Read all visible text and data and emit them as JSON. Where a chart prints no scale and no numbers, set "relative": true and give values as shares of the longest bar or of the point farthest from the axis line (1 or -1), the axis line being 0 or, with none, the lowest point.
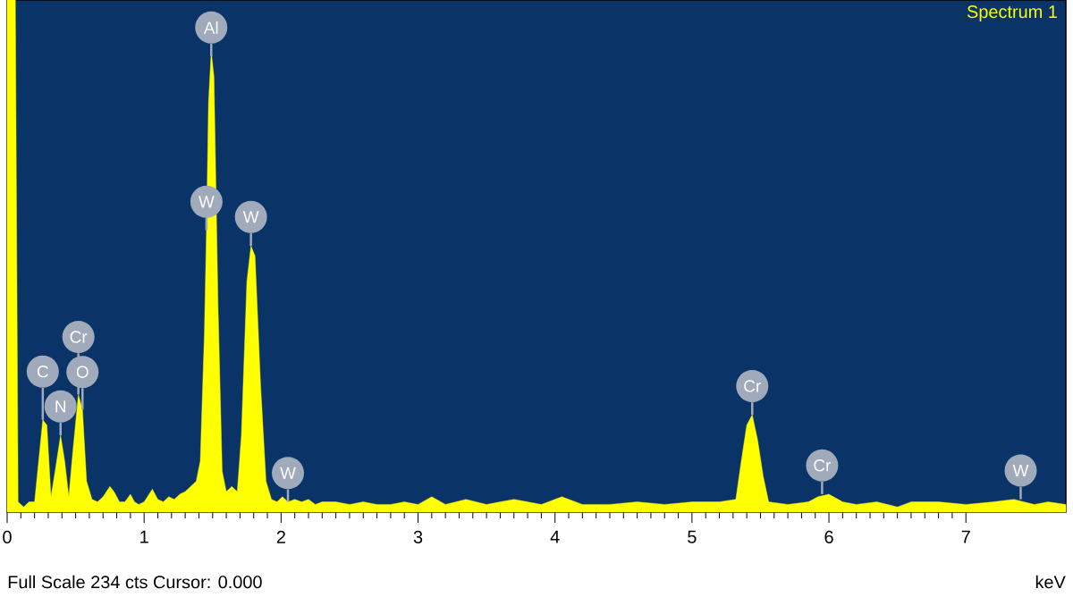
{
  "chart_data": {
    "type": "area",
    "relative": true,
    "xlabel": "keV",
    "xlim": [
      0,
      7.73
    ],
    "xticks": [
      0,
      1,
      2,
      3,
      4,
      5,
      6,
      7
    ],
    "legend": "top right",
    "annotations": [
      "Full Scale 234 cts Cursor: 0.000",
      {
        "text": "C",
        "x": 0.26,
        "y": 0.18
      },
      {
        "text": "O",
        "x": 0.55,
        "y": 0.2
      },
      {
        "text": "Cr",
        "x": 0.52,
        "y": 0.23
      },
      {
        "text": "N",
        "x": 0.39,
        "y": 0.15
      },
      {
        "text": "Al",
        "x": 1.49,
        "y": 0.89
      },
      {
        "text": "W",
        "x": 1.455,
        "y": 0.55
      },
      {
        "text": "W",
        "x": 1.78,
        "y": 0.52
      },
      {
        "text": "W",
        "x": 2.05,
        "y": 0.02
      },
      {
        "text": "Cr",
        "x": 5.44,
        "y": 0.19
      },
      {
        "text": "Cr",
        "x": 5.95,
        "y": 0.035
      },
      {
        "text": "W",
        "x": 7.4,
        "y": 0.025
      }
    ],
    "series": [
      {
        "name": "Spectrum 1",
        "color": "#ffff00",
        "x": [
          0.0,
          0.06,
          0.08,
          0.12,
          0.16,
          0.2,
          0.23,
          0.26,
          0.29,
          0.32,
          0.35,
          0.39,
          0.42,
          0.45,
          0.48,
          0.52,
          0.55,
          0.58,
          0.62,
          0.66,
          0.7,
          0.75,
          0.78,
          0.82,
          0.86,
          0.9,
          0.93,
          0.96,
          1.0,
          1.06,
          1.1,
          1.14,
          1.18,
          1.22,
          1.26,
          1.3,
          1.34,
          1.38,
          1.41,
          1.44,
          1.455,
          1.47,
          1.49,
          1.51,
          1.54,
          1.57,
          1.6,
          1.64,
          1.68,
          1.71,
          1.75,
          1.78,
          1.81,
          1.85,
          1.89,
          1.93,
          1.97,
          2.01,
          2.05,
          2.1,
          2.15,
          2.2,
          2.25,
          2.3,
          2.4,
          2.5,
          2.6,
          2.7,
          2.8,
          2.9,
          3.0,
          3.1,
          3.2,
          3.35,
          3.5,
          3.6,
          3.7,
          3.8,
          3.9,
          4.05,
          4.2,
          4.4,
          4.6,
          4.8,
          5.0,
          5.2,
          5.32,
          5.36,
          5.4,
          5.44,
          5.48,
          5.52,
          5.56,
          5.7,
          5.85,
          5.92,
          6.0,
          6.1,
          6.2,
          6.35,
          6.5,
          6.6,
          6.8,
          7.0,
          7.2,
          7.35,
          7.5,
          7.6,
          7.73
        ],
        "values": [
          1,
          1,
          0.02,
          0.01,
          0.02,
          0.02,
          0.1,
          0.18,
          0.17,
          0.03,
          0.08,
          0.15,
          0.1,
          0.03,
          0.12,
          0.23,
          0.2,
          0.06,
          0.025,
          0.02,
          0.03,
          0.05,
          0.04,
          0.02,
          0.02,
          0.035,
          0.02,
          0.015,
          0.02,
          0.045,
          0.025,
          0.02,
          0.03,
          0.025,
          0.035,
          0.04,
          0.05,
          0.06,
          0.1,
          0.35,
          0.55,
          0.8,
          0.9,
          0.85,
          0.4,
          0.08,
          0.04,
          0.05,
          0.04,
          0.15,
          0.45,
          0.52,
          0.5,
          0.25,
          0.06,
          0.025,
          0.02,
          0.03,
          0.02,
          0.025,
          0.02,
          0.025,
          0.015,
          0.02,
          0.02,
          0.015,
          0.02,
          0.015,
          0.015,
          0.02,
          0.015,
          0.03,
          0.015,
          0.025,
          0.015,
          0.02,
          0.025,
          0.02,
          0.015,
          0.03,
          0.015,
          0.015,
          0.02,
          0.015,
          0.02,
          0.02,
          0.025,
          0.1,
          0.17,
          0.19,
          0.14,
          0.07,
          0.02,
          0.015,
          0.02,
          0.03,
          0.035,
          0.02,
          0.015,
          0.02,
          0.01,
          0.02,
          0.02,
          0.015,
          0.02,
          0.025,
          0.015,
          0.02,
          0.015
        ]
      }
    ]
  }
}
